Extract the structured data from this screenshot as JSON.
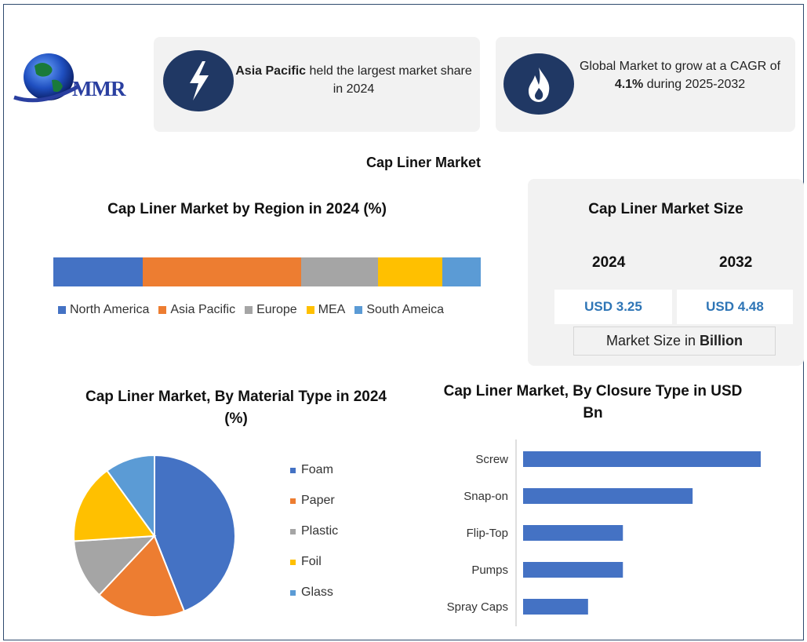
{
  "logo": {
    "text": "MMR",
    "icon": "globe-icon"
  },
  "highlights": [
    {
      "icon": "lightning-icon",
      "bold": "Asia Pacific",
      "text": " held the largest market share in 2024"
    },
    {
      "icon": "flame-icon",
      "pre": "Global Market to grow at a CAGR of ",
      "bold": "4.1%",
      "post": " during 2025-2032"
    }
  ],
  "main_title": "Cap Liner Market",
  "market_size": {
    "title": "Cap Liner Market Size",
    "year1": "2024",
    "year2": "2032",
    "value1": "USD 3.25",
    "value2": "USD 4.48",
    "unit_prefix": "Market Size in",
    "unit_bold": "Billion"
  },
  "colors": {
    "blue": "#4472c4",
    "orange": "#ed7d31",
    "gray": "#a5a5a5",
    "gold": "#ffc000",
    "lightblue": "#5b9bd5",
    "navy": "#203864"
  },
  "chart_data": [
    {
      "type": "bar",
      "orientation": "stacked-horizontal",
      "title": "Cap Liner Market by Region in 2024 (%)",
      "legend_position": "bottom",
      "series": [
        {
          "name": "North America",
          "value": 21,
          "color": "#4472c4"
        },
        {
          "name": "Asia Pacific",
          "value": 37,
          "color": "#ed7d31"
        },
        {
          "name": "Europe",
          "value": 18,
          "color": "#a5a5a5"
        },
        {
          "name": "MEA",
          "value": 15,
          "color": "#ffc000"
        },
        {
          "name": "South Ameica",
          "value": 9,
          "color": "#5b9bd5"
        }
      ]
    },
    {
      "type": "pie",
      "title": "Cap Liner Market, By Material Type in 2024 (%)",
      "legend_position": "right",
      "slices": [
        {
          "name": "Foam",
          "value": 44,
          "color": "#4472c4"
        },
        {
          "name": "Paper",
          "value": 18,
          "color": "#ed7d31"
        },
        {
          "name": "Plastic",
          "value": 12,
          "color": "#a5a5a5"
        },
        {
          "name": "Foil",
          "value": 16,
          "color": "#ffc000"
        },
        {
          "name": "Glass",
          "value": 10,
          "color": "#5b9bd5"
        }
      ]
    },
    {
      "type": "bar",
      "orientation": "horizontal",
      "title": "Cap Liner Market, By Closure Type in USD Bn",
      "categories": [
        "Screw",
        "Snap-on",
        "Flip-Top",
        "Pumps",
        "Spray Caps"
      ],
      "values": [
        1.5,
        1.07,
        0.63,
        0.63,
        0.41
      ],
      "xlim": [
        0,
        1.5
      ],
      "grid": false,
      "color": "#4472c4"
    }
  ]
}
